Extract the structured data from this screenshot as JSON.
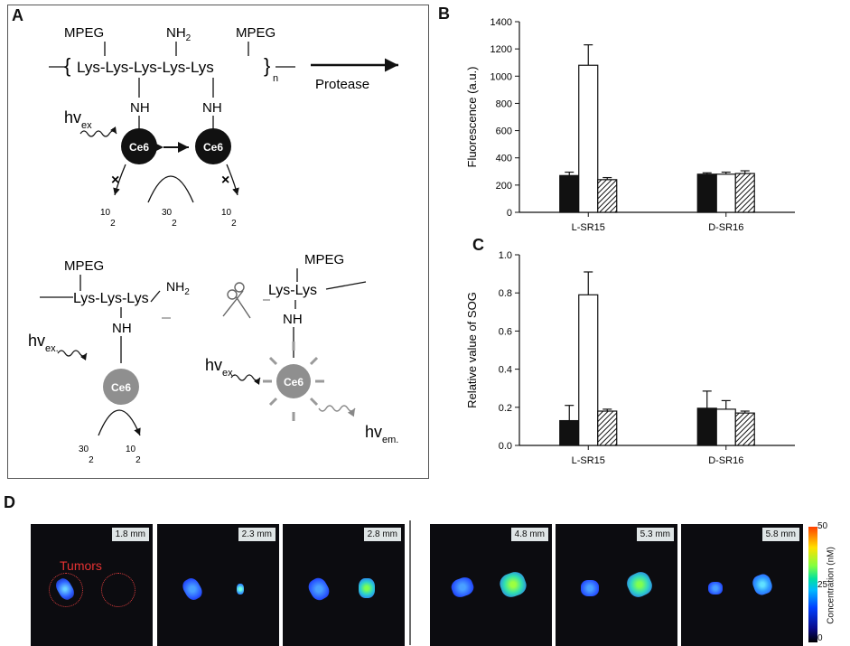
{
  "panels": {
    "a": "A",
    "b": "B",
    "c": "C",
    "d": "D"
  },
  "schematic": {
    "top": {
      "peg_left": "MPEG",
      "nh2": "NH",
      "nh2_sub": "2",
      "peg_right": "MPEG",
      "chain": "Lys-Lys-Lys-Lys-Lys",
      "repeat": "n",
      "nh_left": "NH",
      "nh_right": "NH",
      "hv": "hv",
      "hv_sub": "ex",
      "ce6": "Ce6",
      "o2_left": "10",
      "o2_left_sub": "2",
      "o2_mid": "30",
      "o2_mid_sub": "2",
      "o2_right": "10",
      "o2_right_sub": "2",
      "protease": "Protease"
    },
    "bottom": {
      "peg_left": "MPEG",
      "nh2": "NH",
      "nh2_sub": "2",
      "chain_left": "Lys-Lys-Lys",
      "nh_left": "NH",
      "hv_left": "hv",
      "hv_left_sub": "ex.",
      "ce6": "Ce6",
      "o2_a": "30",
      "o2_a_sub": "2",
      "o2_b": "10",
      "o2_b_sub": "2",
      "peg_right": "MPEG",
      "chain_right": "Lys-Lys",
      "nh_right": "NH",
      "hv_right": "hv",
      "hv_right_sub": "ex.",
      "hv_em": "hv",
      "hv_em_sub": "em."
    }
  },
  "chart_data": [
    {
      "type": "bar",
      "panel": "B",
      "categories": [
        "L-SR15",
        "D-SR16"
      ],
      "series": [
        {
          "fill": "black",
          "values": [
            270,
            280
          ],
          "errors": [
            25,
            10
          ]
        },
        {
          "fill": "white",
          "values": [
            1080,
            280
          ],
          "errors": [
            150,
            15
          ]
        },
        {
          "fill": "hatched",
          "values": [
            240,
            285
          ],
          "errors": [
            15,
            20
          ]
        }
      ],
      "ylabel": "Fluorescence (a.u.)",
      "ylim": [
        0,
        1400
      ],
      "yticks": [
        "0",
        "200",
        "400",
        "600",
        "800",
        "1000",
        "1200",
        "1400"
      ],
      "yticks_num": [
        0,
        200,
        400,
        600,
        800,
        1000,
        1200,
        1400
      ]
    },
    {
      "type": "bar",
      "panel": "C",
      "categories": [
        "L-SR15",
        "D-SR16"
      ],
      "series": [
        {
          "fill": "black",
          "values": [
            0.13,
            0.195
          ],
          "errors": [
            0.08,
            0.09
          ]
        },
        {
          "fill": "white",
          "values": [
            0.79,
            0.19
          ],
          "errors": [
            0.12,
            0.045
          ]
        },
        {
          "fill": "hatched",
          "values": [
            0.18,
            0.17
          ],
          "errors": [
            0.01,
            0.01
          ]
        }
      ],
      "ylabel": "Relative value of SOG",
      "ylim": [
        0,
        1.0
      ],
      "yticks": [
        "0.0",
        "0.2",
        "0.4",
        "0.6",
        "0.8",
        "1.0"
      ],
      "yticks_num": [
        0,
        0.2,
        0.4,
        0.6,
        0.8,
        1.0
      ]
    }
  ],
  "imaging": {
    "tumors_label": "Tumors",
    "depths": [
      "1.8 mm",
      "2.3 mm",
      "2.8 mm",
      "4.8 mm",
      "5.3 mm",
      "5.8 mm"
    ],
    "colorbar": {
      "max": "50",
      "mid": "25",
      "min": "0",
      "title": "Concentration (nM)"
    }
  }
}
